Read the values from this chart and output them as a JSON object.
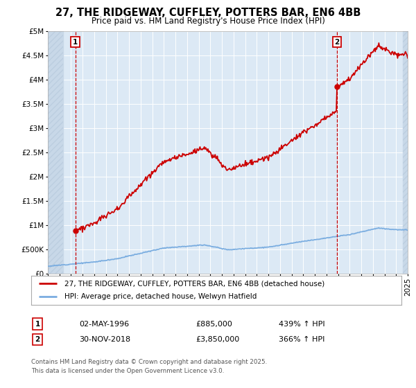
{
  "title": "27, THE RIDGEWAY, CUFFLEY, POTTERS BAR, EN6 4BB",
  "subtitle": "Price paid vs. HM Land Registry's House Price Index (HPI)",
  "legend_label_1": "27, THE RIDGEWAY, CUFFLEY, POTTERS BAR, EN6 4BB (detached house)",
  "legend_label_2": "HPI: Average price, detached house, Welwyn Hatfield",
  "annotation_1_label": "1",
  "annotation_1_date": "02-MAY-1996",
  "annotation_1_price": "£885,000",
  "annotation_1_hpi": "439% ↑ HPI",
  "annotation_2_label": "2",
  "annotation_2_date": "30-NOV-2018",
  "annotation_2_price": "£3,850,000",
  "annotation_2_hpi": "366% ↑ HPI",
  "footer": "Contains HM Land Registry data © Crown copyright and database right 2025.\nThis data is licensed under the Open Government Licence v3.0.",
  "line1_color": "#cc0000",
  "line2_color": "#7aade0",
  "background_color": "#ffffff",
  "plot_bg_color": "#dce9f5",
  "grid_color": "#ffffff",
  "hatch_bg_color": "#c8d8e8",
  "ylim": [
    0,
    5000000
  ],
  "yticks": [
    0,
    500000,
    1000000,
    1500000,
    2000000,
    2500000,
    3000000,
    3500000,
    4000000,
    4500000,
    5000000
  ],
  "ylabel_vals": [
    "£0",
    "£500K",
    "£1M",
    "£1.5M",
    "£2M",
    "£2.5M",
    "£3M",
    "£3.5M",
    "£4M",
    "£4.5M",
    "£5M"
  ],
  "point1_x": 1996.37,
  "point1_y": 885000,
  "point2_x": 2018.92,
  "point2_y": 3850000,
  "xmin": 1994,
  "xmax": 2025,
  "hatch_left_end": 1995.3,
  "hatch_right_start": 2024.6
}
